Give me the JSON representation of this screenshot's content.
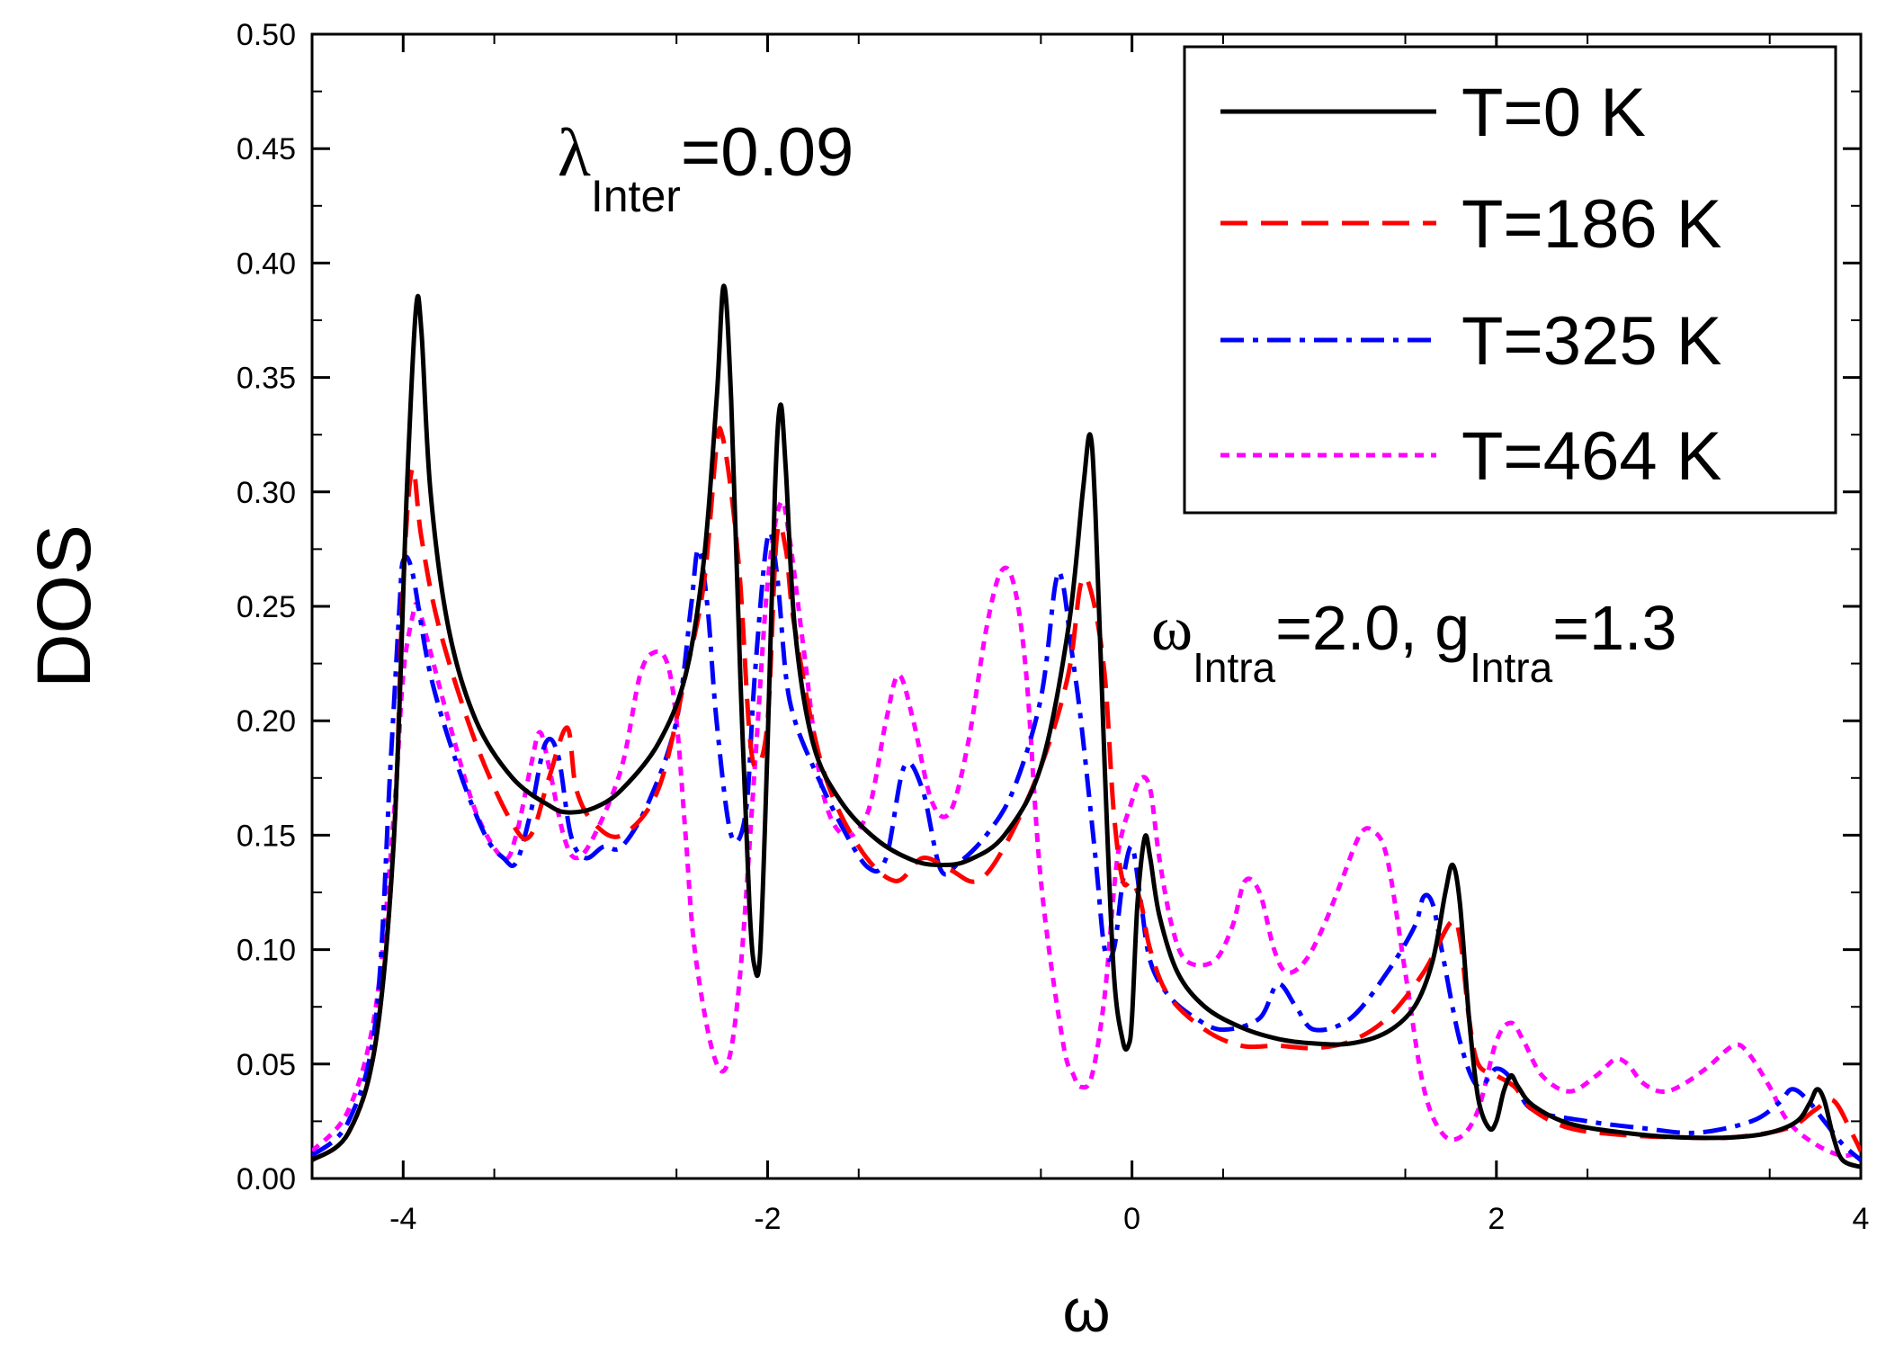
{
  "chart_data": {
    "type": "line",
    "title": "",
    "xlabel": "ω",
    "ylabel": "DOS",
    "xlim": [
      -4.5,
      4
    ],
    "ylim": [
      0,
      0.5
    ],
    "x_ticks": [
      -4,
      -2,
      0,
      2,
      4
    ],
    "x_tick_labels": [
      "-4",
      "-2",
      "0",
      "2",
      "4"
    ],
    "y_ticks": [
      0,
      0.05,
      0.1,
      0.15,
      0.2,
      0.25,
      0.3,
      0.35,
      0.4,
      0.45,
      0.5
    ],
    "y_tick_labels": [
      "0.00",
      "0.05",
      "0.10",
      "0.15",
      "0.20",
      "0.25",
      "0.30",
      "0.35",
      "0.40",
      "0.45",
      "0.50"
    ],
    "legend_position": "top-right",
    "annotations": {
      "lambda": {
        "symbol": "λ",
        "sub": "Inter",
        "value": "=0.09"
      },
      "omega": {
        "symbol": "ω",
        "sub": "Intra",
        "value": "=2.0, g",
        "sub2": "Intra",
        "value2": "=1.3"
      }
    },
    "series": [
      {
        "name": "T=0 K",
        "color": "#000000",
        "dash": "solid",
        "x": [
          -4.5,
          -4.3,
          -4.15,
          -4.05,
          -3.98,
          -3.93,
          -3.9,
          -3.85,
          -3.75,
          -3.6,
          -3.4,
          -3.2,
          -3.1,
          -2.95,
          -2.8,
          -2.6,
          -2.45,
          -2.35,
          -2.28,
          -2.24,
          -2.2,
          -2.15,
          -2.1,
          -2.07,
          -2.04,
          -2.0,
          -1.96,
          -1.93,
          -1.9,
          -1.85,
          -1.75,
          -1.6,
          -1.4,
          -1.2,
          -1.05,
          -0.9,
          -0.7,
          -0.5,
          -0.35,
          -0.27,
          -0.23,
          -0.2,
          -0.15,
          -0.1,
          -0.05,
          -0.02,
          0.0,
          0.03,
          0.07,
          0.1,
          0.15,
          0.25,
          0.4,
          0.6,
          0.8,
          1.0,
          1.2,
          1.4,
          1.55,
          1.65,
          1.72,
          1.76,
          1.8,
          1.85,
          1.9,
          1.96,
          2.0,
          2.04,
          2.08,
          2.12,
          2.2,
          2.4,
          2.7,
          3.0,
          3.3,
          3.5,
          3.65,
          3.72,
          3.76,
          3.8,
          3.85,
          3.9,
          4.0
        ],
        "y": [
          0.008,
          0.02,
          0.06,
          0.15,
          0.3,
          0.38,
          0.37,
          0.3,
          0.24,
          0.2,
          0.175,
          0.163,
          0.16,
          0.162,
          0.17,
          0.19,
          0.22,
          0.27,
          0.34,
          0.39,
          0.34,
          0.22,
          0.12,
          0.092,
          0.1,
          0.19,
          0.3,
          0.338,
          0.31,
          0.24,
          0.19,
          0.165,
          0.148,
          0.139,
          0.137,
          0.139,
          0.15,
          0.18,
          0.24,
          0.3,
          0.325,
          0.29,
          0.18,
          0.09,
          0.06,
          0.058,
          0.07,
          0.12,
          0.149,
          0.14,
          0.115,
          0.09,
          0.075,
          0.066,
          0.061,
          0.059,
          0.059,
          0.064,
          0.075,
          0.095,
          0.125,
          0.137,
          0.12,
          0.07,
          0.035,
          0.022,
          0.025,
          0.038,
          0.045,
          0.04,
          0.032,
          0.024,
          0.02,
          0.018,
          0.018,
          0.02,
          0.025,
          0.033,
          0.039,
          0.034,
          0.018,
          0.008,
          0.005
        ]
      },
      {
        "name": "T=186 K",
        "color": "#ff0000",
        "dash": "dashed",
        "x": [
          -4.5,
          -4.3,
          -4.15,
          -4.05,
          -4.0,
          -3.95,
          -3.9,
          -3.8,
          -3.6,
          -3.4,
          -3.3,
          -3.2,
          -3.1,
          -3.05,
          -2.95,
          -2.8,
          -2.6,
          -2.45,
          -2.35,
          -2.28,
          -2.25,
          -2.2,
          -2.15,
          -2.1,
          -2.06,
          -2.0,
          -1.95,
          -1.9,
          -1.85,
          -1.7,
          -1.5,
          -1.3,
          -1.15,
          -1.0,
          -0.85,
          -0.7,
          -0.5,
          -0.35,
          -0.28,
          -0.22,
          -0.15,
          -0.1,
          -0.05,
          0.0,
          0.05,
          0.1,
          0.2,
          0.4,
          0.6,
          0.8,
          1.0,
          1.2,
          1.4,
          1.6,
          1.75,
          1.8,
          1.85,
          1.9,
          2.0,
          2.1,
          2.2,
          2.4,
          2.7,
          3.0,
          3.3,
          3.6,
          3.75,
          3.85,
          3.95,
          4.0
        ],
        "y": [
          0.008,
          0.02,
          0.06,
          0.15,
          0.26,
          0.31,
          0.28,
          0.24,
          0.19,
          0.155,
          0.15,
          0.175,
          0.197,
          0.17,
          0.155,
          0.15,
          0.17,
          0.22,
          0.26,
          0.32,
          0.325,
          0.3,
          0.26,
          0.195,
          0.18,
          0.2,
          0.28,
          0.275,
          0.24,
          0.18,
          0.145,
          0.13,
          0.14,
          0.135,
          0.13,
          0.145,
          0.18,
          0.22,
          0.26,
          0.255,
          0.22,
          0.16,
          0.13,
          0.13,
          0.12,
          0.1,
          0.08,
          0.065,
          0.058,
          0.058,
          0.057,
          0.06,
          0.07,
          0.09,
          0.112,
          0.105,
          0.07,
          0.05,
          0.045,
          0.04,
          0.03,
          0.022,
          0.019,
          0.018,
          0.018,
          0.022,
          0.03,
          0.034,
          0.02,
          0.012
        ]
      },
      {
        "name": "T=325 K",
        "color": "#0000ff",
        "dash": "dashdot",
        "x": [
          -4.5,
          -4.3,
          -4.15,
          -4.07,
          -4.02,
          -4.0,
          -3.95,
          -3.85,
          -3.7,
          -3.55,
          -3.45,
          -3.38,
          -3.3,
          -3.22,
          -3.15,
          -3.08,
          -3.0,
          -2.9,
          -2.8,
          -2.65,
          -2.5,
          -2.42,
          -2.38,
          -2.33,
          -2.28,
          -2.2,
          -2.12,
          -2.07,
          -2.0,
          -1.95,
          -1.9,
          -1.85,
          -1.75,
          -1.6,
          -1.45,
          -1.35,
          -1.25,
          -1.15,
          -1.05,
          -0.95,
          -0.8,
          -0.65,
          -0.5,
          -0.42,
          -0.38,
          -0.33,
          -0.28,
          -0.2,
          -0.15,
          -0.1,
          -0.05,
          0.0,
          0.05,
          0.1,
          0.2,
          0.35,
          0.5,
          0.7,
          0.8,
          0.9,
          1.0,
          1.2,
          1.4,
          1.55,
          1.6,
          1.65,
          1.7,
          1.8,
          1.9,
          2.0,
          2.1,
          2.2,
          2.5,
          2.8,
          3.1,
          3.4,
          3.55,
          3.62,
          3.7,
          3.8,
          3.9,
          4.0
        ],
        "y": [
          0.01,
          0.025,
          0.07,
          0.18,
          0.25,
          0.27,
          0.265,
          0.22,
          0.18,
          0.15,
          0.14,
          0.138,
          0.16,
          0.19,
          0.185,
          0.15,
          0.14,
          0.145,
          0.145,
          0.165,
          0.2,
          0.25,
          0.275,
          0.25,
          0.2,
          0.15,
          0.16,
          0.22,
          0.28,
          0.265,
          0.22,
          0.2,
          0.18,
          0.155,
          0.136,
          0.14,
          0.18,
          0.17,
          0.135,
          0.138,
          0.15,
          0.17,
          0.21,
          0.26,
          0.26,
          0.23,
          0.2,
          0.14,
          0.1,
          0.1,
          0.13,
          0.145,
          0.12,
          0.095,
          0.08,
          0.07,
          0.065,
          0.07,
          0.085,
          0.075,
          0.065,
          0.07,
          0.09,
          0.11,
          0.123,
          0.12,
          0.1,
          0.06,
          0.04,
          0.048,
          0.042,
          0.03,
          0.025,
          0.022,
          0.02,
          0.025,
          0.033,
          0.039,
          0.035,
          0.025,
          0.015,
          0.008
        ]
      },
      {
        "name": "T=464 K",
        "color": "#ff00ff",
        "dash": "dotted",
        "x": [
          -4.5,
          -4.3,
          -4.15,
          -4.05,
          -4.0,
          -3.95,
          -3.92,
          -3.85,
          -3.75,
          -3.6,
          -3.45,
          -3.38,
          -3.3,
          -3.25,
          -3.2,
          -3.12,
          -3.05,
          -2.95,
          -2.8,
          -2.7,
          -2.62,
          -2.55,
          -2.5,
          -2.45,
          -2.4,
          -2.3,
          -2.22,
          -2.15,
          -2.07,
          -2.0,
          -1.93,
          -1.88,
          -1.8,
          -1.7,
          -1.58,
          -1.45,
          -1.35,
          -1.28,
          -1.2,
          -1.1,
          -1.0,
          -0.9,
          -0.8,
          -0.72,
          -0.65,
          -0.58,
          -0.5,
          -0.38,
          -0.32,
          -0.28,
          -0.22,
          -0.15,
          -0.08,
          0.0,
          0.05,
          0.1,
          0.15,
          0.22,
          0.3,
          0.45,
          0.55,
          0.62,
          0.7,
          0.78,
          0.85,
          0.95,
          1.05,
          1.15,
          1.25,
          1.32,
          1.4,
          1.5,
          1.6,
          1.7,
          1.8,
          1.9,
          2.0,
          2.08,
          2.15,
          2.25,
          2.4,
          2.55,
          2.65,
          2.72,
          2.8,
          2.9,
          3.0,
          3.15,
          3.3,
          3.38,
          3.5,
          3.6,
          3.75,
          3.9,
          4.0
        ],
        "y": [
          0.012,
          0.03,
          0.075,
          0.16,
          0.22,
          0.245,
          0.25,
          0.23,
          0.2,
          0.16,
          0.14,
          0.15,
          0.18,
          0.195,
          0.18,
          0.15,
          0.14,
          0.15,
          0.18,
          0.22,
          0.23,
          0.225,
          0.2,
          0.15,
          0.1,
          0.055,
          0.05,
          0.09,
          0.18,
          0.26,
          0.295,
          0.28,
          0.23,
          0.17,
          0.15,
          0.16,
          0.2,
          0.22,
          0.2,
          0.165,
          0.16,
          0.19,
          0.24,
          0.265,
          0.26,
          0.22,
          0.13,
          0.06,
          0.045,
          0.04,
          0.045,
          0.08,
          0.14,
          0.165,
          0.175,
          0.17,
          0.14,
          0.11,
          0.095,
          0.095,
          0.11,
          0.13,
          0.125,
          0.1,
          0.09,
          0.095,
          0.11,
          0.13,
          0.15,
          0.152,
          0.14,
          0.09,
          0.04,
          0.02,
          0.018,
          0.03,
          0.06,
          0.068,
          0.06,
          0.045,
          0.038,
          0.045,
          0.052,
          0.05,
          0.042,
          0.038,
          0.04,
          0.048,
          0.058,
          0.055,
          0.04,
          0.025,
          0.015,
          0.01,
          0.012
        ]
      }
    ]
  }
}
